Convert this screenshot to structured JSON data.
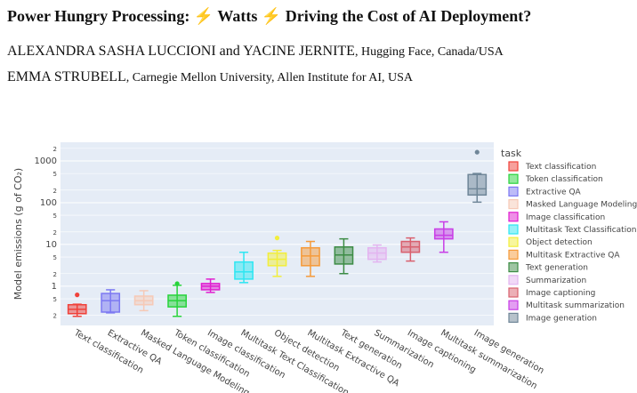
{
  "header": {
    "title": "Power Hungry Processing: ⚡ Watts ⚡ Driving the Cost of AI Deployment?",
    "authors": [
      {
        "names": "ALEXANDRA SASHA LUCCIONI and YACINE JERNITE",
        "affiliation": ", Hugging Face, Canada/USA"
      },
      {
        "names": "EMMA STRUBELL",
        "affiliation": ", Carnegie Mellon University, Allen Institute for AI, USA"
      }
    ]
  },
  "chart_data": {
    "type": "box",
    "y_label": "Model emissions (g of CO₂)",
    "legend_title": "task",
    "log_scale": true,
    "grid": true,
    "legend": "right",
    "ylim": [
      0.115,
      2800
    ],
    "yticks": [
      {
        "value": 0.2,
        "label": "2"
      },
      {
        "value": 0.5,
        "label": "5"
      },
      1,
      {
        "value": 2,
        "label": "2"
      },
      {
        "value": 5,
        "label": "5"
      },
      10,
      {
        "value": 20,
        "label": "2"
      },
      {
        "value": 50,
        "label": "5"
      },
      100,
      {
        "value": 200,
        "label": "2"
      },
      {
        "value": 500,
        "label": "5"
      },
      1000,
      {
        "value": 2000,
        "label": "2"
      }
    ],
    "categories": [
      "Text classification",
      "Extractive QA",
      "Masked Language Modeling",
      "Token classification",
      "Image classification",
      "Multitask Text Classification",
      "Object detection",
      "Multitask Extractive QA",
      "Text generation",
      "Summarization",
      "Image captioning",
      "Multitask summarization",
      "Image generation"
    ],
    "series": [
      {
        "name": "Text classification",
        "color": "#f0413a",
        "min": 0.19,
        "q1": 0.22,
        "median": 0.28,
        "q3": 0.36,
        "max": 0.37,
        "outliers": [
          0.62
        ]
      },
      {
        "name": "Token classification",
        "color": "#28d33c",
        "min": 0.19,
        "q1": 0.32,
        "median": 0.45,
        "q3": 0.61,
        "max": 1.05,
        "outliers": [
          1.15
        ]
      },
      {
        "name": "Extractive QA",
        "color": "#7c78f2",
        "min": 0.23,
        "q1": 0.24,
        "median": 0.45,
        "q3": 0.67,
        "max": 0.82,
        "outliers": []
      },
      {
        "name": "Masked Language Modeling",
        "color": "#f6c9b6",
        "min": 0.26,
        "q1": 0.36,
        "median": 0.45,
        "q3": 0.58,
        "max": 0.78,
        "outliers": []
      },
      {
        "name": "Image classification",
        "color": "#e01ed0",
        "min": 0.71,
        "q1": 0.82,
        "median": 1.0,
        "q3": 1.16,
        "max": 1.48,
        "outliers": []
      },
      {
        "name": "Multitask Text Classification",
        "color": "#2ee6f2",
        "min": 1.22,
        "q1": 1.48,
        "median": 2.2,
        "q3": 3.8,
        "max": 6.5,
        "outliers": []
      },
      {
        "name": "Object detection",
        "color": "#f2ee3c",
        "min": 1.72,
        "q1": 3.1,
        "median": 4.4,
        "q3": 6.2,
        "max": 7.2,
        "outliers": [
          14.3
        ]
      },
      {
        "name": "Multitask Extractive QA",
        "color": "#f59a3a",
        "min": 1.72,
        "q1": 3.1,
        "median": 5.3,
        "q3": 8.3,
        "max": 11.8,
        "outliers": []
      },
      {
        "name": "Text generation",
        "color": "#3d8c45",
        "min": 2.0,
        "q1": 3.4,
        "median": 5.6,
        "q3": 8.7,
        "max": 13.6,
        "outliers": []
      },
      {
        "name": "Summarization",
        "color": "#e3b4f0",
        "min": 3.8,
        "q1": 4.4,
        "median": 6.2,
        "q3": 8.3,
        "max": 9.7,
        "outliers": []
      },
      {
        "name": "Image captioning",
        "color": "#d9606e",
        "min": 4.0,
        "q1": 6.5,
        "median": 8.7,
        "q3": 11.8,
        "max": 14.3,
        "outliers": []
      },
      {
        "name": "Multitask summarization",
        "color": "#c83ee6",
        "min": 6.5,
        "q1": 13.6,
        "median": 16.6,
        "q3": 23.5,
        "max": 34.8,
        "outliers": []
      },
      {
        "name": "Image generation",
        "color": "#6f8698",
        "min": 103,
        "q1": 153,
        "median": 215,
        "q3": 473,
        "max": 500,
        "outliers": [
          1620
        ]
      }
    ]
  }
}
